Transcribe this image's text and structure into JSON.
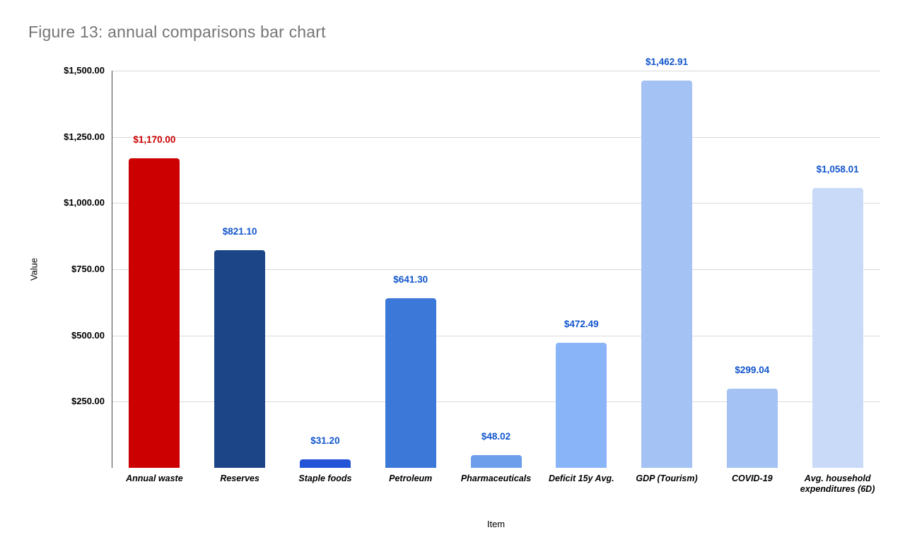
{
  "title": "Figure 13: annual comparisons bar chart",
  "colors": {
    "title_text": "#757575",
    "gridline": "#d9d9d9",
    "axis_line": "#454545",
    "value_label_default": "#1155cc",
    "value_label_highlight": "#cc0000",
    "background": "#ffffff"
  },
  "chart_data": {
    "type": "bar",
    "title": "Figure 13: annual comparisons bar chart",
    "xlabel": "Item",
    "ylabel": "Value",
    "ylim": [
      0,
      1500
    ],
    "grid": true,
    "legend": false,
    "y_ticks": [
      {
        "value": 1500,
        "label": "$1,500.00"
      },
      {
        "value": 1250,
        "label": "$1,250.00"
      },
      {
        "value": 1000,
        "label": "$1,000.00"
      },
      {
        "value": 750,
        "label": "$750.00"
      },
      {
        "value": 500,
        "label": "$500.00"
      },
      {
        "value": 250,
        "label": "$250.00"
      }
    ],
    "categories": [
      "Annual waste",
      "Reserves",
      "Staple foods",
      "Petroleum",
      "Pharmaceuticals",
      "Deficit 15y Avg.",
      "GDP (Tourism)",
      "COVID-19",
      "Avg. household expenditures (6D)"
    ],
    "values": [
      1170.0,
      821.1,
      31.2,
      641.3,
      48.02,
      472.49,
      1462.91,
      299.04,
      1058.01
    ],
    "value_labels": [
      "$1,170.00",
      "$821.10",
      "$31.20",
      "$641.30",
      "$48.02",
      "$472.49",
      "$1,462.91",
      "$299.04",
      "$1,058.01"
    ],
    "bar_colors": [
      "#cc0000",
      "#1c4587",
      "#2353d6",
      "#3c78d8",
      "#6d9eeb",
      "#8ab4f8",
      "#a4c2f4",
      "#a4c2f4",
      "#c9daf8"
    ],
    "value_label_colors": [
      "#cc0000",
      "#1155cc",
      "#1155cc",
      "#1155cc",
      "#1155cc",
      "#1155cc",
      "#1155cc",
      "#1155cc",
      "#1155cc"
    ]
  }
}
